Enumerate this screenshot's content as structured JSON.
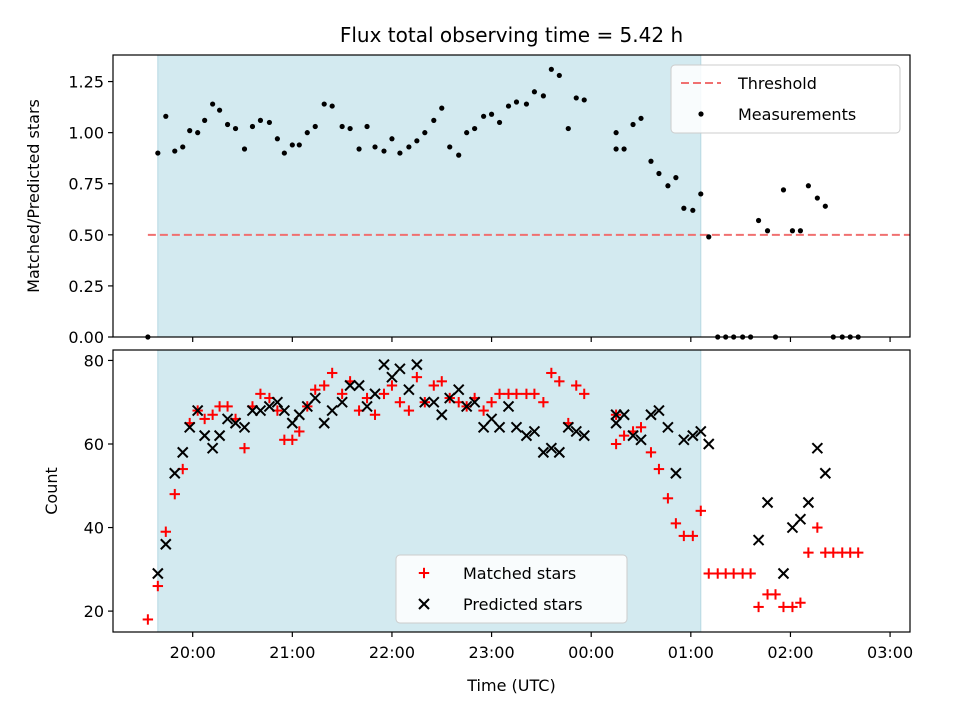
{
  "chart_data": [
    {
      "type": "scatter",
      "title": "Flux total observing time = 5.42 h",
      "xlabel": "",
      "ylabel": "Matched/Predicted stars",
      "xlim": [
        19.2,
        27.2
      ],
      "ylim": [
        0,
        1.38
      ],
      "ytick_values": [
        0,
        0.25,
        0.5,
        0.75,
        1.0,
        1.25
      ],
      "ytick_labels": [
        "0.00",
        "0.25",
        "0.50",
        "0.75",
        "1.00",
        "1.25"
      ],
      "shaded_region": [
        19.65,
        25.1
      ],
      "shade_color": "#d3eaf0",
      "threshold": {
        "name": "Threshold",
        "y": 0.5,
        "x_range": [
          19.55,
          27.65
        ],
        "color": "#f07070"
      },
      "series": [
        {
          "name": "Measurements",
          "color": "#000000",
          "points": [
            [
              19.55,
              0.0
            ],
            [
              19.65,
              0.9
            ],
            [
              19.73,
              1.08
            ],
            [
              19.82,
              0.91
            ],
            [
              19.9,
              0.93
            ],
            [
              19.97,
              1.01
            ],
            [
              20.05,
              1.0
            ],
            [
              20.12,
              1.06
            ],
            [
              20.2,
              1.14
            ],
            [
              20.27,
              1.11
            ],
            [
              20.35,
              1.04
            ],
            [
              20.43,
              1.02
            ],
            [
              20.52,
              0.92
            ],
            [
              20.6,
              1.03
            ],
            [
              20.68,
              1.06
            ],
            [
              20.77,
              1.05
            ],
            [
              20.85,
              0.97
            ],
            [
              20.92,
              0.9
            ],
            [
              21.0,
              0.94
            ],
            [
              21.07,
              0.94
            ],
            [
              21.15,
              1.0
            ],
            [
              21.23,
              1.03
            ],
            [
              21.32,
              1.14
            ],
            [
              21.4,
              1.13
            ],
            [
              21.5,
              1.03
            ],
            [
              21.58,
              1.02
            ],
            [
              21.67,
              0.92
            ],
            [
              21.75,
              1.03
            ],
            [
              21.83,
              0.93
            ],
            [
              21.92,
              0.91
            ],
            [
              22.0,
              0.97
            ],
            [
              22.08,
              0.9
            ],
            [
              22.17,
              0.93
            ],
            [
              22.25,
              0.96
            ],
            [
              22.33,
              1.0
            ],
            [
              22.42,
              1.06
            ],
            [
              22.5,
              1.12
            ],
            [
              22.58,
              0.93
            ],
            [
              22.67,
              0.89
            ],
            [
              22.75,
              1.0
            ],
            [
              22.83,
              1.02
            ],
            [
              22.92,
              1.08
            ],
            [
              23.0,
              1.09
            ],
            [
              23.08,
              1.05
            ],
            [
              23.17,
              1.13
            ],
            [
              23.25,
              1.15
            ],
            [
              23.35,
              1.14
            ],
            [
              23.43,
              1.2
            ],
            [
              23.52,
              1.18
            ],
            [
              23.6,
              1.31
            ],
            [
              23.68,
              1.28
            ],
            [
              23.77,
              1.02
            ],
            [
              23.85,
              1.17
            ],
            [
              23.93,
              1.16
            ],
            [
              24.25,
              0.92
            ],
            [
              24.25,
              1.0
            ],
            [
              24.33,
              0.92
            ],
            [
              24.42,
              1.04
            ],
            [
              24.5,
              1.07
            ],
            [
              24.6,
              0.86
            ],
            [
              24.68,
              0.8
            ],
            [
              24.77,
              0.74
            ],
            [
              24.85,
              0.78
            ],
            [
              24.93,
              0.63
            ],
            [
              25.02,
              0.62
            ],
            [
              25.1,
              0.7
            ],
            [
              25.18,
              0.49
            ],
            [
              25.27,
              0.0
            ],
            [
              25.35,
              0.0
            ],
            [
              25.43,
              0.0
            ],
            [
              25.52,
              0.0
            ],
            [
              25.6,
              0.0
            ],
            [
              25.68,
              0.57
            ],
            [
              25.77,
              0.52
            ],
            [
              25.85,
              0.0
            ],
            [
              25.93,
              0.72
            ],
            [
              26.02,
              0.52
            ],
            [
              26.1,
              0.52
            ],
            [
              26.18,
              0.74
            ],
            [
              26.27,
              0.68
            ],
            [
              26.35,
              0.64
            ],
            [
              26.43,
              0.0
            ],
            [
              26.52,
              0.0
            ],
            [
              26.6,
              0.0
            ],
            [
              26.68,
              0.0
            ]
          ]
        }
      ],
      "legend": {
        "location": "top-right",
        "entries": [
          "Threshold",
          "Measurements"
        ]
      }
    },
    {
      "type": "scatter",
      "title": "",
      "xlabel": "Time (UTC)",
      "ylabel": "Count",
      "xlim": [
        19.2,
        27.2
      ],
      "ylim": [
        15,
        82.5
      ],
      "ytick_values": [
        20,
        40,
        60,
        80
      ],
      "ytick_labels": [
        "20",
        "40",
        "60",
        "80"
      ],
      "xtick_values": [
        20,
        21,
        22,
        23,
        24,
        25,
        26,
        27
      ],
      "xtick_labels": [
        "20:00",
        "21:00",
        "22:00",
        "23:00",
        "00:00",
        "01:00",
        "02:00",
        "03:00"
      ],
      "shaded_region": [
        19.65,
        25.1
      ],
      "shade_color": "#d3eaf0",
      "series": [
        {
          "name": "Matched stars",
          "marker": "plus",
          "color": "#ff0000",
          "points": [
            [
              19.55,
              18
            ],
            [
              19.65,
              26
            ],
            [
              19.73,
              39
            ],
            [
              19.82,
              48
            ],
            [
              19.9,
              54
            ],
            [
              19.97,
              65
            ],
            [
              20.05,
              68
            ],
            [
              20.12,
              66
            ],
            [
              20.2,
              67
            ],
            [
              20.27,
              69
            ],
            [
              20.35,
              69
            ],
            [
              20.43,
              66
            ],
            [
              20.52,
              59
            ],
            [
              20.6,
              69
            ],
            [
              20.68,
              72
            ],
            [
              20.77,
              71
            ],
            [
              20.85,
              68
            ],
            [
              20.92,
              61
            ],
            [
              21.0,
              61
            ],
            [
              21.07,
              63
            ],
            [
              21.15,
              69
            ],
            [
              21.23,
              73
            ],
            [
              21.32,
              74
            ],
            [
              21.4,
              77
            ],
            [
              21.5,
              72
            ],
            [
              21.58,
              75
            ],
            [
              21.67,
              68
            ],
            [
              21.75,
              71
            ],
            [
              21.83,
              67
            ],
            [
              21.92,
              72
            ],
            [
              22.0,
              74
            ],
            [
              22.08,
              70
            ],
            [
              22.17,
              68
            ],
            [
              22.25,
              76
            ],
            [
              22.33,
              70
            ],
            [
              22.42,
              74
            ],
            [
              22.5,
              75
            ],
            [
              22.58,
              71
            ],
            [
              22.67,
              70
            ],
            [
              22.75,
              69
            ],
            [
              22.83,
              71
            ],
            [
              22.92,
              68
            ],
            [
              23.0,
              70
            ],
            [
              23.08,
              72
            ],
            [
              23.17,
              72
            ],
            [
              23.25,
              72
            ],
            [
              23.35,
              72
            ],
            [
              23.43,
              72
            ],
            [
              23.52,
              70
            ],
            [
              23.6,
              77
            ],
            [
              23.68,
              75
            ],
            [
              23.77,
              65
            ],
            [
              23.85,
              74
            ],
            [
              23.93,
              72
            ],
            [
              24.25,
              60
            ],
            [
              24.25,
              67
            ],
            [
              24.33,
              62
            ],
            [
              24.42,
              63
            ],
            [
              24.5,
              64
            ],
            [
              24.6,
              58
            ],
            [
              24.68,
              54
            ],
            [
              24.77,
              47
            ],
            [
              24.85,
              41
            ],
            [
              24.93,
              38
            ],
            [
              25.02,
              38
            ],
            [
              25.1,
              44
            ],
            [
              25.18,
              29
            ],
            [
              25.27,
              29
            ],
            [
              25.35,
              29
            ],
            [
              25.43,
              29
            ],
            [
              25.52,
              29
            ],
            [
              25.6,
              29
            ],
            [
              25.68,
              21
            ],
            [
              25.77,
              24
            ],
            [
              25.85,
              24
            ],
            [
              25.93,
              21
            ],
            [
              26.02,
              21
            ],
            [
              26.1,
              22
            ],
            [
              26.18,
              34
            ],
            [
              26.27,
              40
            ],
            [
              26.35,
              34
            ],
            [
              26.43,
              34
            ],
            [
              26.52,
              34
            ],
            [
              26.6,
              34
            ],
            [
              26.68,
              34
            ]
          ]
        },
        {
          "name": "Predicted stars",
          "marker": "x",
          "color": "#000000",
          "points": [
            [
              19.65,
              29
            ],
            [
              19.73,
              36
            ],
            [
              19.82,
              53
            ],
            [
              19.9,
              58
            ],
            [
              19.97,
              64
            ],
            [
              20.05,
              68
            ],
            [
              20.12,
              62
            ],
            [
              20.2,
              59
            ],
            [
              20.27,
              62
            ],
            [
              20.35,
              66
            ],
            [
              20.43,
              65
            ],
            [
              20.52,
              64
            ],
            [
              20.6,
              68
            ],
            [
              20.68,
              68
            ],
            [
              20.77,
              69
            ],
            [
              20.85,
              70
            ],
            [
              20.92,
              68
            ],
            [
              21.0,
              65
            ],
            [
              21.07,
              67
            ],
            [
              21.15,
              69
            ],
            [
              21.23,
              71
            ],
            [
              21.32,
              65
            ],
            [
              21.4,
              68
            ],
            [
              21.5,
              70
            ],
            [
              21.58,
              74
            ],
            [
              21.67,
              74
            ],
            [
              21.75,
              69
            ],
            [
              21.83,
              72
            ],
            [
              21.92,
              79
            ],
            [
              22.0,
              76
            ],
            [
              22.08,
              78
            ],
            [
              22.17,
              73
            ],
            [
              22.25,
              79
            ],
            [
              22.33,
              70
            ],
            [
              22.42,
              70
            ],
            [
              22.5,
              67
            ],
            [
              22.58,
              71
            ],
            [
              22.67,
              73
            ],
            [
              22.75,
              69
            ],
            [
              22.83,
              70
            ],
            [
              22.92,
              64
            ],
            [
              23.0,
              66
            ],
            [
              23.08,
              64
            ],
            [
              23.17,
              69
            ],
            [
              23.25,
              64
            ],
            [
              23.35,
              62
            ],
            [
              23.43,
              63
            ],
            [
              23.52,
              58
            ],
            [
              23.6,
              59
            ],
            [
              23.68,
              58
            ],
            [
              23.77,
              64
            ],
            [
              23.85,
              63
            ],
            [
              23.93,
              62
            ],
            [
              24.25,
              65
            ],
            [
              24.25,
              67
            ],
            [
              24.33,
              67
            ],
            [
              24.42,
              62
            ],
            [
              24.5,
              61
            ],
            [
              24.6,
              67
            ],
            [
              24.68,
              68
            ],
            [
              24.77,
              64
            ],
            [
              24.85,
              53
            ],
            [
              24.93,
              61
            ],
            [
              25.02,
              62
            ],
            [
              25.1,
              63
            ],
            [
              25.18,
              60
            ],
            [
              25.68,
              37
            ],
            [
              25.77,
              46
            ],
            [
              25.93,
              29
            ],
            [
              26.02,
              40
            ],
            [
              26.1,
              42
            ],
            [
              26.18,
              46
            ],
            [
              26.27,
              59
            ],
            [
              26.35,
              53
            ]
          ]
        }
      ],
      "legend": {
        "location": "bottom-center",
        "entries": [
          "Matched stars",
          "Predicted stars"
        ]
      }
    }
  ]
}
